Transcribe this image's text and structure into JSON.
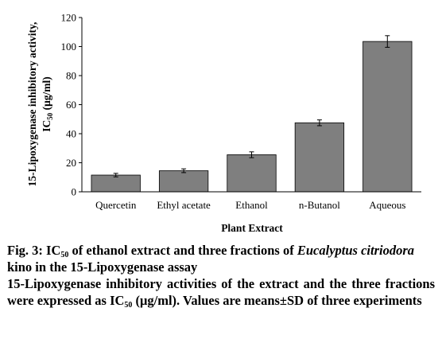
{
  "chart_data": {
    "type": "bar",
    "categories": [
      "Quercetin",
      "Ethyl acetate",
      "Ethanol",
      "n-Butanol",
      "Aqueous"
    ],
    "values": [
      11.5,
      14.5,
      25.5,
      47.5,
      103.5
    ],
    "errors": [
      1.2,
      1.3,
      2.0,
      2.0,
      4.0
    ],
    "xlabel": "Plant Extract",
    "ylabel_line1": "15-Lipoxygenase inhibitory activity,",
    "ylabel_line2_prefix": "IC",
    "ylabel_line2_sub": "50",
    "ylabel_line2_suffix": " (μg/ml)",
    "ylim": [
      0,
      120
    ],
    "yticks": [
      0,
      20,
      40,
      60,
      80,
      100,
      120
    ],
    "grid": false,
    "bar_color": "#7f7f7f",
    "bar_edge_color": "#000000"
  },
  "caption": {
    "fig_label": "Fig. 3: IC",
    "fig_sub": "50",
    "fig_text_1": " of ethanol extract and three fractions of ",
    "fig_italic": "Eucalyptus citriodora",
    "fig_text_2": " kino in the 15-Lipoxygenase assay",
    "desc_1": "15-Lipoxygenase inhibitory activities of the extract and the three fractions were expressed as IC",
    "desc_sub": "50",
    "desc_2": " (μg/ml). Values are means±SD of three experiments"
  }
}
